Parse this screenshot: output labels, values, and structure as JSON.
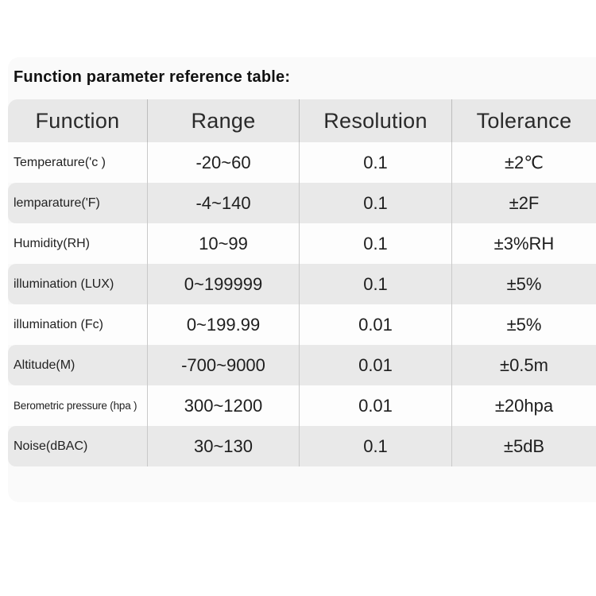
{
  "title": "Function parameter reference table:",
  "table": {
    "columns": [
      "Function",
      "Range",
      "Resolution",
      "Tolerance"
    ],
    "rows": [
      [
        "Temperature('c )",
        "-20~60",
        "0.1",
        "±2℃"
      ],
      [
        "lemparature('F)",
        "-4~140",
        "0.1",
        "±2F"
      ],
      [
        "Humidity(RH)",
        "10~99",
        "0.1",
        "±3%RH"
      ],
      [
        "illumination (LUX)",
        "0~199999",
        "0.1",
        "±5%"
      ],
      [
        "illumination (Fc)",
        "0~199.99",
        "0.01",
        "±5%"
      ],
      [
        "Altitude(M)",
        "-700~9000",
        "0.01",
        "±0.5m"
      ],
      [
        "Berometric pressure (hpa )",
        "300~1200",
        "0.01",
        "±20hpa"
      ],
      [
        "Noise(dBAC)",
        "30~130",
        "0.1",
        "±5dB"
      ]
    ]
  },
  "colors": {
    "page_bg": "#ffffff",
    "panel_bg": "#fafafa",
    "header_bg": "#e8e8e8",
    "row_alt_bg": "#e9e9e9",
    "row_bg": "#fdfdfd",
    "divider": "#c9c9c9",
    "text": "#1e1e1e"
  }
}
